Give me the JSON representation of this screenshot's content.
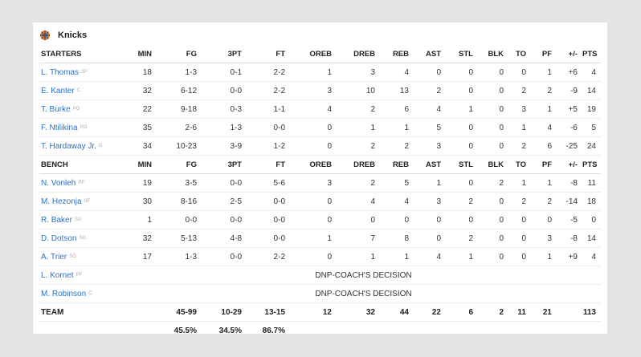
{
  "team": {
    "name": "Knicks",
    "logo_icon": "knicks-basketball-icon"
  },
  "starters": {
    "header": [
      "STARTERS",
      "MIN",
      "FG",
      "3PT",
      "FT",
      "OREB",
      "DREB",
      "REB",
      "AST",
      "STL",
      "BLK",
      "TO",
      "PF",
      "+/-",
      "PTS"
    ],
    "players": [
      {
        "name": "L. Thomas",
        "pos": "SF",
        "stats": [
          "18",
          "1-3",
          "0-1",
          "2-2",
          "1",
          "3",
          "4",
          "0",
          "0",
          "0",
          "0",
          "1",
          "+6",
          "4"
        ]
      },
      {
        "name": "E. Kanter",
        "pos": "C",
        "stats": [
          "32",
          "6-12",
          "0-0",
          "2-2",
          "3",
          "10",
          "13",
          "2",
          "0",
          "0",
          "2",
          "2",
          "-9",
          "14"
        ]
      },
      {
        "name": "T. Burke",
        "pos": "PG",
        "stats": [
          "22",
          "9-18",
          "0-3",
          "1-1",
          "4",
          "2",
          "6",
          "4",
          "1",
          "0",
          "3",
          "1",
          "+5",
          "19"
        ]
      },
      {
        "name": "F. Ntilikina",
        "pos": "PG",
        "stats": [
          "35",
          "2-6",
          "1-3",
          "0-0",
          "0",
          "1",
          "1",
          "5",
          "0",
          "0",
          "1",
          "4",
          "-6",
          "5"
        ]
      },
      {
        "name": "T. Hardaway Jr.",
        "pos": "G",
        "stats": [
          "34",
          "10-23",
          "3-9",
          "1-2",
          "0",
          "2",
          "2",
          "3",
          "0",
          "0",
          "2",
          "6",
          "-25",
          "24"
        ]
      }
    ]
  },
  "bench": {
    "header": [
      "BENCH",
      "MIN",
      "FG",
      "3PT",
      "FT",
      "OREB",
      "DREB",
      "REB",
      "AST",
      "STL",
      "BLK",
      "TO",
      "PF",
      "+/-",
      "PTS"
    ],
    "players": [
      {
        "name": "N. Vonleh",
        "pos": "PF",
        "stats": [
          "19",
          "3-5",
          "0-0",
          "5-6",
          "3",
          "2",
          "5",
          "1",
          "0",
          "2",
          "1",
          "1",
          "-8",
          "11"
        ]
      },
      {
        "name": "M. Hezonja",
        "pos": "SF",
        "stats": [
          "30",
          "8-16",
          "2-5",
          "0-0",
          "0",
          "4",
          "4",
          "3",
          "2",
          "0",
          "2",
          "2",
          "-14",
          "18"
        ]
      },
      {
        "name": "R. Baker",
        "pos": "SG",
        "stats": [
          "1",
          "0-0",
          "0-0",
          "0-0",
          "0",
          "0",
          "0",
          "0",
          "0",
          "0",
          "0",
          "0",
          "-5",
          "0"
        ]
      },
      {
        "name": "D. Dotson",
        "pos": "SG",
        "stats": [
          "32",
          "5-13",
          "4-8",
          "0-0",
          "1",
          "7",
          "8",
          "0",
          "2",
          "0",
          "0",
          "3",
          "-8",
          "14"
        ]
      },
      {
        "name": "A. Trier",
        "pos": "SG",
        "stats": [
          "17",
          "1-3",
          "0-0",
          "2-2",
          "0",
          "1",
          "1",
          "4",
          "1",
          "0",
          "0",
          "1",
          "+9",
          "4"
        ]
      }
    ],
    "dnp": [
      {
        "name": "L. Kornet",
        "pos": "PF",
        "note": "DNP-COACH'S DECISION"
      },
      {
        "name": "M. Robinson",
        "pos": "C",
        "note": "DNP-COACH'S DECISION"
      }
    ]
  },
  "totals": {
    "label": "TEAM",
    "stats": [
      "",
      "45-99",
      "10-29",
      "13-15",
      "12",
      "32",
      "44",
      "22",
      "6",
      "2",
      "11",
      "21",
      "",
      "113"
    ],
    "percentages": [
      "",
      "45.5%",
      "34.5%",
      "86.7%",
      "",
      "",
      "",
      "",
      "",
      "",
      "",
      "",
      "",
      ""
    ]
  }
}
